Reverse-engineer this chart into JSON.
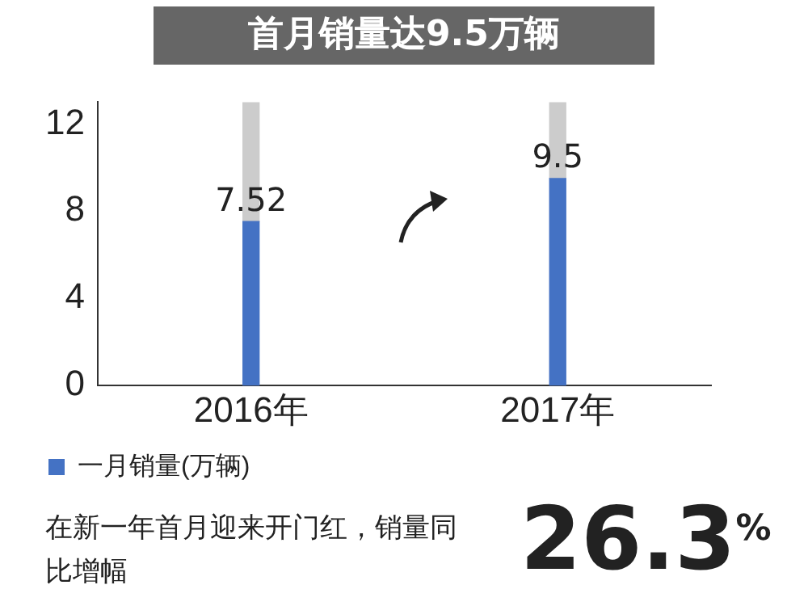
{
  "chart_data": {
    "type": "bar",
    "title": "首月销量达9.5万辆",
    "categories": [
      "2016年",
      "2017年"
    ],
    "series": [
      {
        "name": "一月销量(万辆)",
        "color": "#4472c4",
        "values": [
          7.52,
          9.5
        ],
        "value_labels": [
          "7.52",
          "9.5"
        ]
      },
      {
        "color": "#cccccc",
        "values": [
          5.48,
          3.5
        ]
      }
    ],
    "stacked": true,
    "ylim": [
      0,
      13
    ],
    "yticks": [
      0,
      4,
      8,
      12
    ],
    "grid": false,
    "legend": "bottom left",
    "annotations": [
      "在新一年首月迎来开门红，销量同比增幅",
      "26.3$^{%}$"
    ]
  }
}
